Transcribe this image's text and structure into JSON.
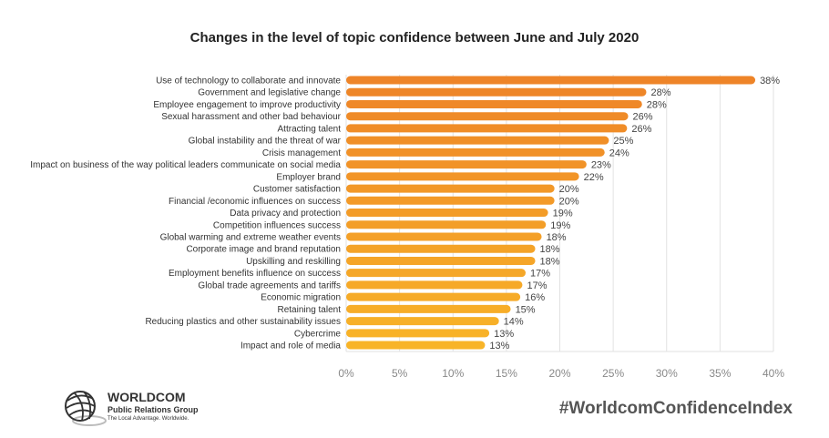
{
  "chart_data": {
    "type": "bar",
    "orientation": "horizontal",
    "title": "Changes in the level of topic confidence between June and July 2020",
    "categories": [
      "Use of technology to collaborate and innovate",
      "Government and legislative change",
      "Employee engagement to improve productivity",
      "Sexual harassment and other bad behaviour",
      "Attracting talent",
      "Global instability and the threat of war",
      "Crisis management",
      "Impact on business of the way political leaders communicate on social media",
      "Employer brand",
      "Customer satisfaction",
      "Financial /economic influences on success",
      "Data privacy and protection",
      "Competition influences success",
      "Global warming and extreme weather events",
      "Corporate image and brand reputation",
      "Upskilling and reskilling",
      "Employment benefits influence on success",
      "Global trade agreements and tariffs",
      "Economic migration",
      "Retaining talent",
      "Reducing plastics and other sustainability issues",
      "Cybercrime",
      "Impact and role of media"
    ],
    "values": [
      38.3,
      28.1,
      27.7,
      26.4,
      26.3,
      24.6,
      24.2,
      22.5,
      21.8,
      19.5,
      19.5,
      18.9,
      18.7,
      18.3,
      17.7,
      17.7,
      16.8,
      16.5,
      16.3,
      15.4,
      14.3,
      13.4,
      13.0
    ],
    "data_labels": [
      "38%",
      "28%",
      "28%",
      "26%",
      "26%",
      "25%",
      "24%",
      "23%",
      "22%",
      "20%",
      "20%",
      "19%",
      "19%",
      "18%",
      "18%",
      "18%",
      "17%",
      "17%",
      "16%",
      "15%",
      "14%",
      "13%",
      "13%"
    ],
    "xlim": [
      0,
      40
    ],
    "x_ticks": [
      "0%",
      "5%",
      "10%",
      "15%",
      "20%",
      "25%",
      "30%",
      "35%",
      "40%"
    ],
    "grid": true,
    "legend": "none",
    "colors": {
      "top": "#ee8428",
      "bottom": "#f8b428",
      "grid": "#e2e2e2",
      "tick_text": "#888888"
    }
  },
  "footer": {
    "hashtag": "#WorldcomConfidenceIndex",
    "logo": {
      "name": "WORLDCOM",
      "sub": "Public Relations Group",
      "tagline": "The Local Advantage. Worldwide."
    }
  }
}
